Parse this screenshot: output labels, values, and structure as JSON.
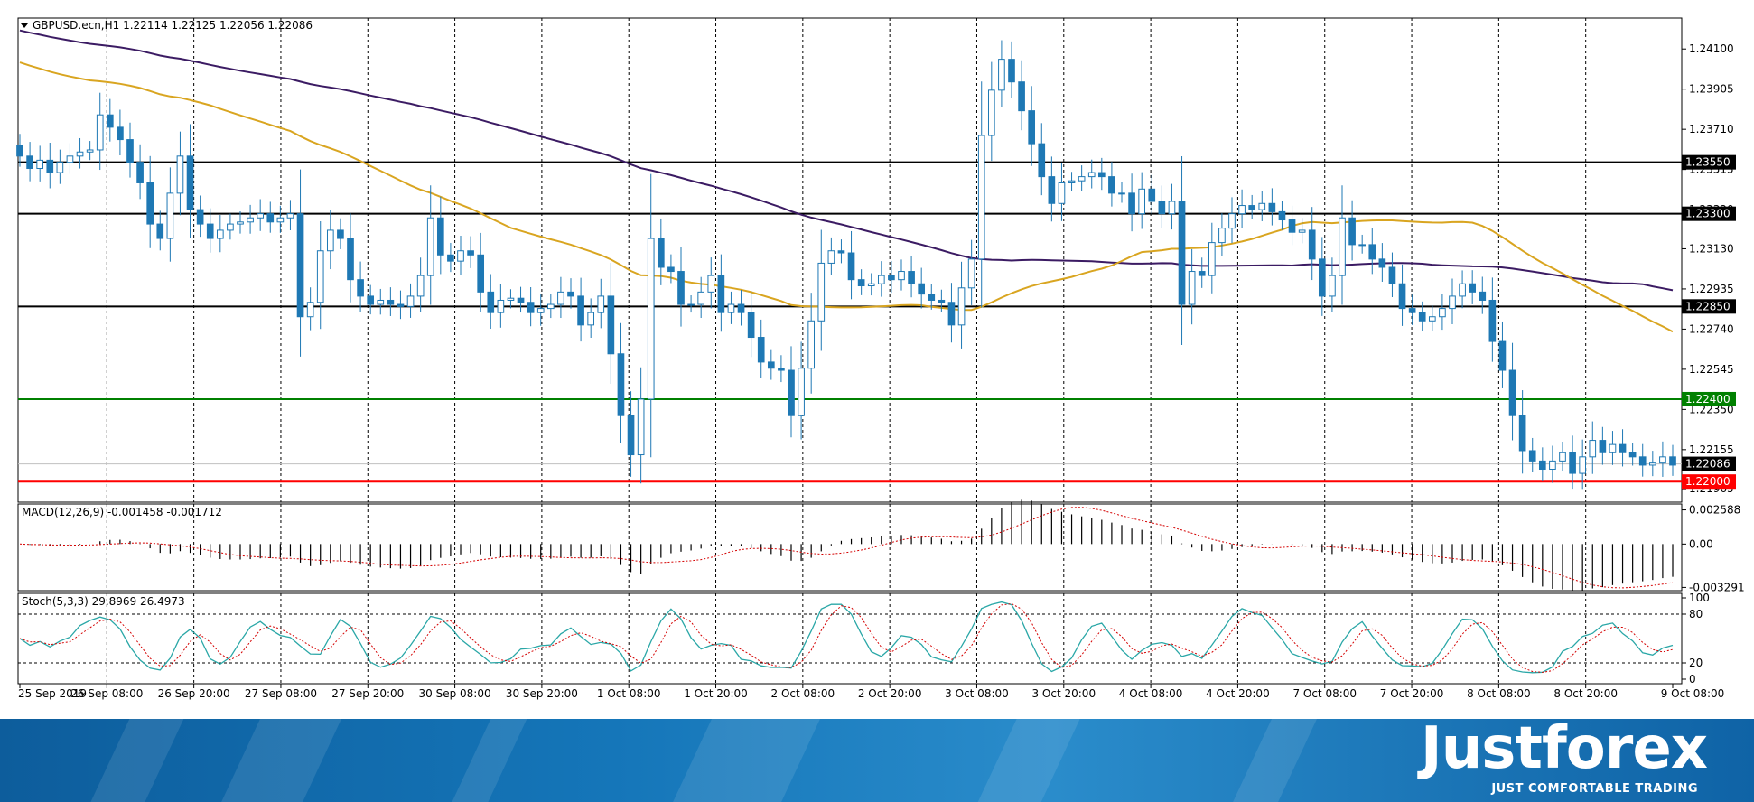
{
  "chart_data": {
    "type": "candlestick",
    "symbol_header": "GBPUSD.ecn,H1  1.22114 1.22125 1.22056 1.22086",
    "ylim": [
      1.219,
      1.2425
    ],
    "price_ticks": [
      "1.24100",
      "1.23905",
      "1.23710",
      "1.23515",
      "1.23320",
      "1.23130",
      "1.22935",
      "1.22740",
      "1.22545",
      "1.22350",
      "1.22155",
      "1.21965"
    ],
    "price_tick_values": [
      1.241,
      1.23905,
      1.2371,
      1.23515,
      1.2332,
      1.2313,
      1.22935,
      1.2274,
      1.22545,
      1.2235,
      1.22155,
      1.21965
    ],
    "levels": [
      {
        "value": 1.2355,
        "label": "1.23550",
        "color": "#000000"
      },
      {
        "value": 1.233,
        "label": "1.23300",
        "color": "#000000"
      },
      {
        "value": 1.2285,
        "label": "1.22850",
        "color": "#000000"
      },
      {
        "value": 1.224,
        "label": "1.22400",
        "color": "#008000"
      },
      {
        "value": 1.22,
        "label": "1.22000",
        "color": "#ff0000"
      }
    ],
    "last_price": {
      "value": 1.22086,
      "label": "1.22086"
    },
    "time_labels": [
      "25 Sep 2019",
      "26 Sep 08:00",
      "26 Sep 20:00",
      "27 Sep 08:00",
      "27 Sep 20:00",
      "30 Sep 08:00",
      "30 Sep 20:00",
      "1 Oct 08:00",
      "1 Oct 20:00",
      "2 Oct 08:00",
      "2 Oct 20:00",
      "3 Oct 08:00",
      "3 Oct 20:00",
      "4 Oct 08:00",
      "4 Oct 20:00",
      "7 Oct 08:00",
      "7 Oct 20:00",
      "8 Oct 08:00",
      "8 Oct 20:00",
      "9 Oct 08:00"
    ],
    "close": [
      1.2358,
      1.2352,
      1.2356,
      1.235,
      1.2355,
      1.2358,
      1.236,
      1.2361,
      1.2378,
      1.2372,
      1.2366,
      1.2355,
      1.2345,
      1.2325,
      1.2318,
      1.234,
      1.2358,
      1.2332,
      1.2325,
      1.2318,
      1.2322,
      1.2325,
      1.2326,
      1.2328,
      1.233,
      1.2326,
      1.2328,
      1.233,
      1.228,
      1.2287,
      1.2312,
      1.2322,
      1.2318,
      1.2298,
      1.229,
      1.2286,
      1.2288,
      1.2286,
      1.2285,
      1.229,
      1.23,
      1.2328,
      1.231,
      1.2307,
      1.2312,
      1.231,
      1.2292,
      1.2282,
      1.2288,
      1.2289,
      1.2287,
      1.2282,
      1.2284,
      1.2286,
      1.2292,
      1.229,
      1.2276,
      1.2282,
      1.229,
      1.2262,
      1.2232,
      1.2213,
      1.224,
      1.2318,
      1.2304,
      1.2302,
      1.2286,
      1.2286,
      1.2292,
      1.23,
      1.2282,
      1.2286,
      1.2282,
      1.227,
      1.2258,
      1.2255,
      1.2254,
      1.2232,
      1.2255,
      1.2278,
      1.2306,
      1.2312,
      1.2311,
      1.2298,
      1.2295,
      1.2296,
      1.23,
      1.2298,
      1.2302,
      1.2296,
      1.2291,
      1.2288,
      1.2287,
      1.2276,
      1.2294,
      1.2308,
      1.2368,
      1.239,
      1.2405,
      1.2394,
      1.238,
      1.2364,
      1.2348,
      1.2335,
      1.2345,
      1.2346,
      1.2348,
      1.235,
      1.2348,
      1.234,
      1.234,
      1.233,
      1.2342,
      1.2336,
      1.233,
      1.2336,
      1.2286,
      1.2302,
      1.23,
      1.2316,
      1.2323,
      1.233,
      1.2334,
      1.2332,
      1.2335,
      1.2331,
      1.2327,
      1.2321,
      1.2322,
      1.2308,
      1.229,
      1.23,
      1.2328,
      1.2315,
      1.2315,
      1.2308,
      1.2304,
      1.2296,
      1.2284,
      1.2282,
      1.2278,
      1.228,
      1.2284,
      1.229,
      1.2296,
      1.2292,
      1.2288,
      1.2268,
      1.2254,
      1.2232,
      1.2215,
      1.221,
      1.2206,
      1.221,
      1.2214,
      1.2204,
      1.2212,
      1.222,
      1.2214,
      1.2218,
      1.2214,
      1.2212,
      1.2208,
      1.2209,
      1.2212,
      1.2208
    ],
    "macd": {
      "label": "MACD(12,26,9) -0.001458 -0.001712",
      "ylim": [
        -0.0034,
        0.0029
      ],
      "ticks": [
        "0.002588",
        "0.00",
        "-0.003291"
      ],
      "tick_values": [
        0.002588,
        0.0,
        -0.003291
      ]
    },
    "stoch": {
      "label": "Stoch(5,3,3) 29.8969 26.4973",
      "ticks": [
        "100",
        "80",
        "20",
        "0"
      ],
      "tick_values": [
        100,
        80,
        20,
        0
      ],
      "levels": [
        80,
        20
      ]
    },
    "colors": {
      "bull": "#1e78b4",
      "bear": "#1e78b4",
      "ma_slow": "#3b1b63",
      "ma_fast": "#d9a520",
      "stoch_main": "#2aa7a7",
      "stoch_signal": "#d40000",
      "macd_signal": "#d40000",
      "grid": "#000000"
    }
  },
  "branding": {
    "name": "Justforex",
    "tagline": "JUST COMFORTABLE TRADING"
  }
}
